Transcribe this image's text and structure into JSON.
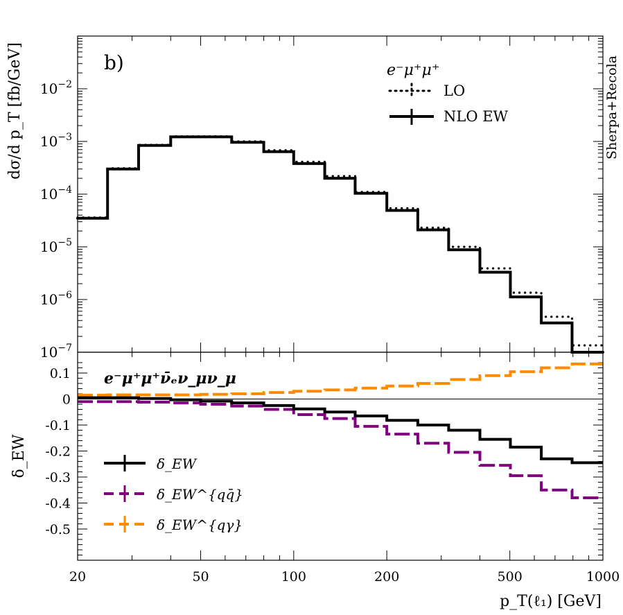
{
  "chart_data": [
    {
      "type": "line",
      "panel_label": "b)",
      "ylabel": "dσ/d p_T [fb/GeV]",
      "ylog": true,
      "ylim": [
        1e-07,
        0.1
      ],
      "xlog": true,
      "xlim": [
        20,
        1000
      ],
      "y_tick_labels": [
        "10^-2",
        "10^-3",
        "10^-4",
        "10^-5",
        "10^-6",
        "10^-7"
      ],
      "legend": {
        "title": "e⁻μ⁺μ⁺",
        "placement": "top-right"
      },
      "side_label": "Sherpa+Recola",
      "bin_edges": [
        20,
        25,
        31.5,
        40,
        50,
        63,
        80,
        100,
        126,
        158,
        200,
        252,
        317,
        400,
        502,
        632,
        795,
        1000
      ],
      "series": [
        {
          "name": "LO",
          "style": "dotted",
          "color": "#000000",
          "values": [
            3.6e-05,
            0.00031,
            0.00086,
            0.00125,
            0.00125,
            0.001,
            0.00068,
            0.00041,
            0.00022,
            0.00011,
            5.4e-05,
            2.3e-05,
            1e-05,
            3.9e-06,
            1.35e-06,
            4.7e-07,
            1.35e-07
          ]
        },
        {
          "name": "NLO EW",
          "style": "solid",
          "color": "#000000",
          "values": [
            3.5e-05,
            0.0003,
            0.00084,
            0.00122,
            0.00122,
            0.00096,
            0.00064,
            0.00038,
            0.0002,
            0.000104,
            4.9e-05,
            2.1e-05,
            8.8e-06,
            3.3e-06,
            1.12e-06,
            3.6e-07,
            1e-07
          ]
        }
      ]
    },
    {
      "type": "line",
      "process_label": "e⁻μ⁺μ⁺ν̄ₑν_μν_μ",
      "ylabel": "δ_EW",
      "xlabel": "p_T(ℓ₁) [GeV]",
      "xlog": true,
      "xlim": [
        20,
        1000
      ],
      "ylim": [
        -0.62,
        0.18
      ],
      "x_tick_labels": [
        "20",
        "50",
        "100",
        "200",
        "500",
        "1000"
      ],
      "y_tick_labels": [
        "0.1",
        "0",
        "-0.1",
        "-0.2",
        "-0.3",
        "-0.4",
        "-0.5"
      ],
      "legend_placement": "bottom-left",
      "bin_edges": [
        20,
        25,
        31.5,
        40,
        50,
        63,
        80,
        100,
        126,
        158,
        200,
        252,
        317,
        400,
        502,
        632,
        795,
        1000
      ],
      "series": [
        {
          "name": "δ_EW",
          "style": "solid",
          "color": "#000000",
          "values": [
            0.005,
            0.005,
            0.002,
            -0.003,
            -0.008,
            -0.015,
            -0.025,
            -0.038,
            -0.05,
            -0.065,
            -0.082,
            -0.1,
            -0.12,
            -0.155,
            -0.185,
            -0.23,
            -0.245
          ]
        },
        {
          "name": "δ_EW^{qq̄}",
          "style": "dashed",
          "color": "#800080",
          "values": [
            -0.01,
            -0.01,
            -0.012,
            -0.015,
            -0.02,
            -0.027,
            -0.04,
            -0.06,
            -0.075,
            -0.105,
            -0.135,
            -0.17,
            -0.205,
            -0.255,
            -0.295,
            -0.35,
            -0.38
          ]
        },
        {
          "name": "δ_EW^{qγ}",
          "style": "dashed",
          "color": "#ff8c00",
          "values": [
            0.015,
            0.016,
            0.016,
            0.016,
            0.018,
            0.02,
            0.025,
            0.03,
            0.035,
            0.042,
            0.05,
            0.06,
            0.075,
            0.09,
            0.105,
            0.12,
            0.135
          ]
        }
      ]
    }
  ]
}
